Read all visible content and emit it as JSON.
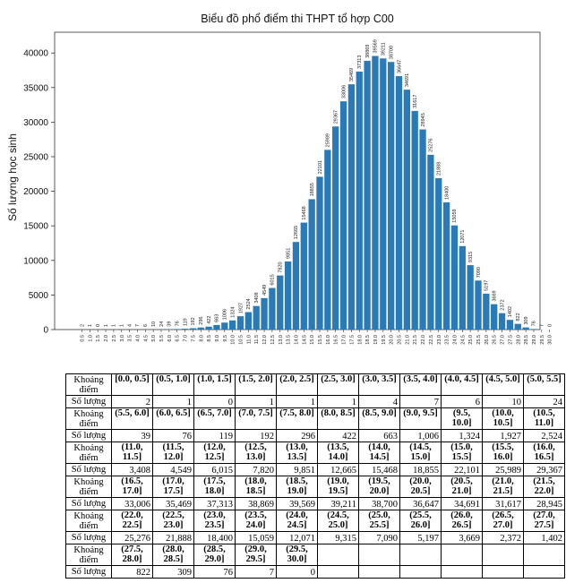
{
  "chart_data": {
    "type": "bar",
    "title": "Biểu đồ phổ điểm thi THPT tổ hợp C00",
    "xlabel": "",
    "ylabel": "Số lượng học sinh",
    "ylim": [
      0,
      43000
    ],
    "yticks": [
      "0",
      "5000",
      "10000",
      "15000",
      "20000",
      "25000",
      "30000",
      "35000",
      "40000"
    ],
    "categories": [
      "0.5",
      "1.0",
      "1.5",
      "2.0",
      "2.5",
      "3.0",
      "3.5",
      "4.0",
      "4.5",
      "5.0",
      "5.5",
      "6.0",
      "6.5",
      "7.0",
      "7.5",
      "8.0",
      "8.5",
      "9.0",
      "9.5",
      "10.0",
      "10.5",
      "11.0",
      "11.5",
      "12.0",
      "12.5",
      "13.0",
      "13.5",
      "14.0",
      "14.5",
      "15.0",
      "15.5",
      "16.0",
      "16.5",
      "17.0",
      "17.5",
      "18.0",
      "18.5",
      "19.0",
      "19.5",
      "20.0",
      "20.5",
      "21.0",
      "21.5",
      "22.0",
      "22.5",
      "23.0",
      "23.5",
      "24.0",
      "24.5",
      "25.0",
      "25.5",
      "26.0",
      "26.5",
      "27.0",
      "27.5",
      "28.0",
      "28.5",
      "29.0",
      "29.5",
      "30.0"
    ],
    "values": [
      2,
      1,
      0,
      1,
      1,
      1,
      4,
      7,
      6,
      10,
      24,
      39,
      76,
      119,
      192,
      296,
      422,
      663,
      1006,
      1324,
      1927,
      2524,
      3408,
      4549,
      6015,
      7820,
      9851,
      12665,
      15468,
      18855,
      22101,
      25989,
      29367,
      33006,
      35469,
      37313,
      38869,
      39569,
      39211,
      38700,
      36647,
      34691,
      31617,
      28945,
      25276,
      21888,
      18400,
      15059,
      12071,
      9315,
      7090,
      5197,
      3669,
      2372,
      1402,
      822,
      309,
      76,
      7,
      0
    ],
    "bar_color": "#2a7ab8"
  },
  "table": {
    "range_label": "Khoảng điểm",
    "count_label": "Số lượng",
    "groups": [
      {
        "ranges": [
          "[0.0, 0.5]",
          "(0.5, 1.0]",
          "(1.0, 1.5]",
          "(1.5, 2.0]",
          "(2.0, 2.5]",
          "(2.5, 3.0]",
          "(3.0, 3.5]",
          "(3.5, 4.0]",
          "(4.0, 4.5]",
          "(4.5, 5.0]",
          "(5.0, 5.5]"
        ],
        "counts": [
          "2",
          "1",
          "0",
          "1",
          "1",
          "1",
          "4",
          "7",
          "6",
          "10",
          "24"
        ]
      },
      {
        "ranges": [
          "(5.5, 6.0]",
          "(6.0, 6.5]",
          "(6.5, 7.0]",
          "(7.0, 7.5]",
          "(7.5, 8.0]",
          "(8.0, 8.5]",
          "(8.5, 9.0]",
          "(9.0, 9.5]",
          "(9.5, 10.0]",
          "(10.0, 10.5]",
          "(10.5, 11.0]"
        ],
        "counts": [
          "39",
          "76",
          "119",
          "192",
          "296",
          "422",
          "663",
          "1,006",
          "1,324",
          "1,927",
          "2,524"
        ]
      },
      {
        "ranges": [
          "(11.0, 11.5]",
          "(11.5, 12.0]",
          "(12.0, 12.5]",
          "(12.5, 13.0]",
          "(13.0, 13.5]",
          "(13.5, 14.0]",
          "(14.0, 14.5]",
          "(14.5, 15.0]",
          "(15.0, 15.5]",
          "(15.5, 16.0]",
          "(16.0, 16.5]"
        ],
        "counts": [
          "3,408",
          "4,549",
          "6,015",
          "7,820",
          "9,851",
          "12,665",
          "15,468",
          "18,855",
          "22,101",
          "25,989",
          "29,367"
        ]
      },
      {
        "ranges": [
          "(16.5, 17.0]",
          "(17.0, 17.5]",
          "(17.5, 18.0]",
          "(18.0, 18.5]",
          "(18.5, 19.0]",
          "(19.0, 19.5]",
          "(19.5, 20.0]",
          "(20.0, 20.5]",
          "(20.5, 21.0]",
          "(21.0, 21.5]",
          "(21.5, 22.0]"
        ],
        "counts": [
          "33,006",
          "35,469",
          "37,313",
          "38,869",
          "39,569",
          "39,211",
          "38,700",
          "36,647",
          "34,691",
          "31,617",
          "28,945"
        ]
      },
      {
        "ranges": [
          "(22.0, 22.5]",
          "(22.5, 23.0]",
          "(23.0, 23.5]",
          "(23.5, 24.0]",
          "(24.0, 24.5]",
          "(24.5, 25.0]",
          "(25.0, 25.5]",
          "(25.5, 26.0]",
          "(26.0, 26.5]",
          "(26.5, 27.0]",
          "(27.0, 27.5]"
        ],
        "counts": [
          "25,276",
          "21,888",
          "18,400",
          "15,059",
          "12,071",
          "9,315",
          "7,090",
          "5,197",
          "3,669",
          "2,372",
          "1,402"
        ]
      },
      {
        "ranges": [
          "(27.5, 28.0]",
          "(28.0, 28.5]",
          "(28.5, 29.0]",
          "(29.0, 29.5]",
          "(29.5, 30.0]",
          "",
          "",
          "",
          "",
          "",
          ""
        ],
        "counts": [
          "822",
          "309",
          "76",
          "7",
          "0",
          "",
          "",
          "",
          "",
          "",
          ""
        ]
      }
    ]
  }
}
